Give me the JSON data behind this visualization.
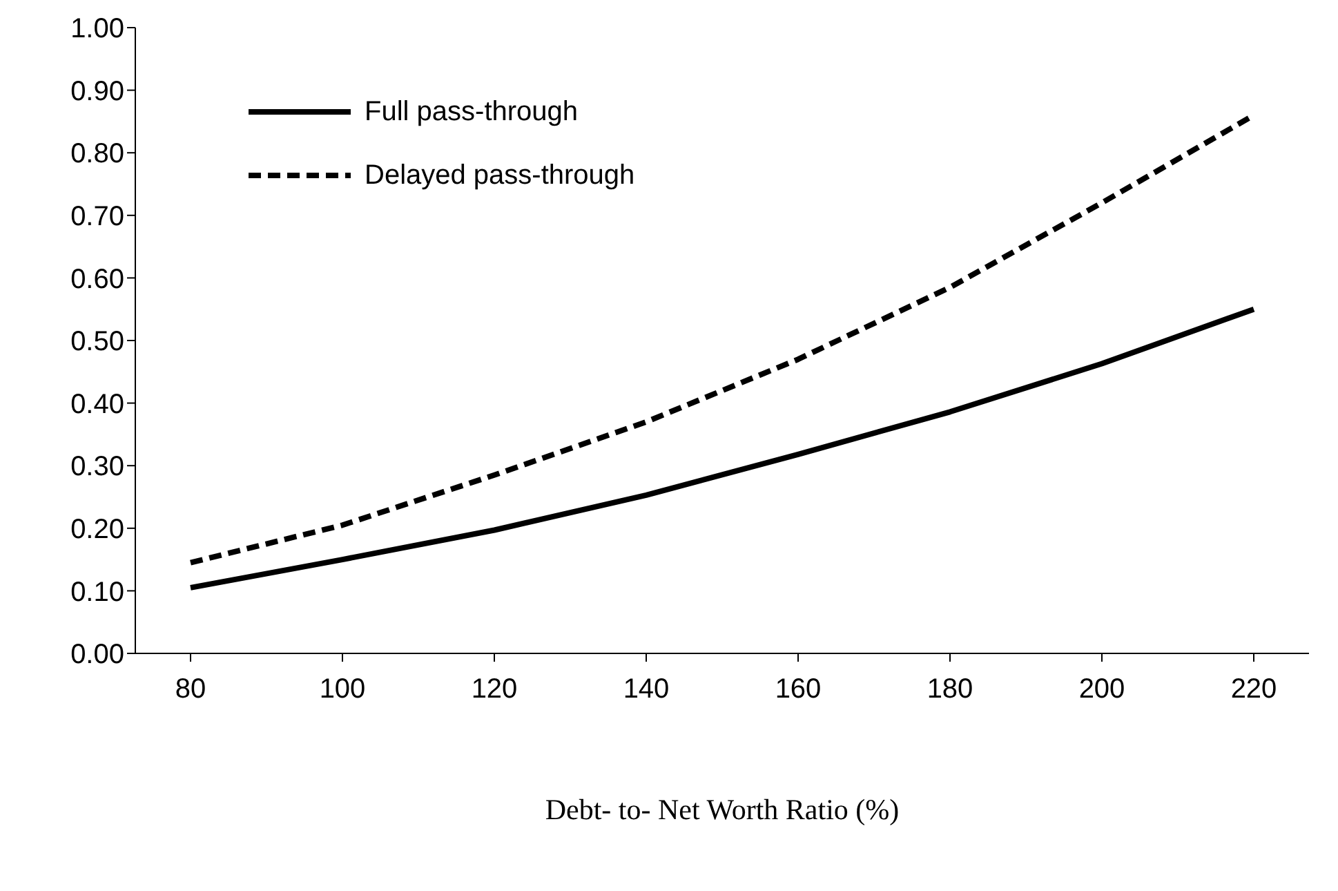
{
  "chart_data": {
    "type": "line",
    "xlabel": "Debt- to- Net Worth Ratio (%)",
    "categories": [
      "80",
      "100",
      "120",
      "140",
      "160",
      "180",
      "200",
      "220"
    ],
    "series": [
      {
        "name": "Full pass-through",
        "color": "#000000",
        "line_style": "solid",
        "values": [
          0.105,
          0.15,
          0.197,
          0.253,
          0.318,
          0.386,
          0.463,
          0.55
        ]
      },
      {
        "name": "Delayed pass-through",
        "color": "#000000",
        "line_style": "dashed",
        "values": [
          0.145,
          0.205,
          0.285,
          0.37,
          0.47,
          0.585,
          0.72,
          0.86
        ]
      }
    ],
    "ylim": [
      0,
      1
    ],
    "yticks": [
      {
        "value": 0,
        "label": "0.00"
      },
      {
        "value": 0.1,
        "label": "0.10"
      },
      {
        "value": 0.2,
        "label": "0.20"
      },
      {
        "value": 0.3,
        "label": "0.30"
      },
      {
        "value": 0.4,
        "label": "0.40"
      },
      {
        "value": 0.5,
        "label": "0.50"
      },
      {
        "value": 0.6,
        "label": "0.60"
      },
      {
        "value": 0.7,
        "label": "0.70"
      },
      {
        "value": 0.8,
        "label": "0.80"
      },
      {
        "value": 0.9,
        "label": "0.90"
      },
      {
        "value": 1,
        "label": "1.00"
      }
    ],
    "grid": false,
    "legend": "top left",
    "marker": "none"
  }
}
